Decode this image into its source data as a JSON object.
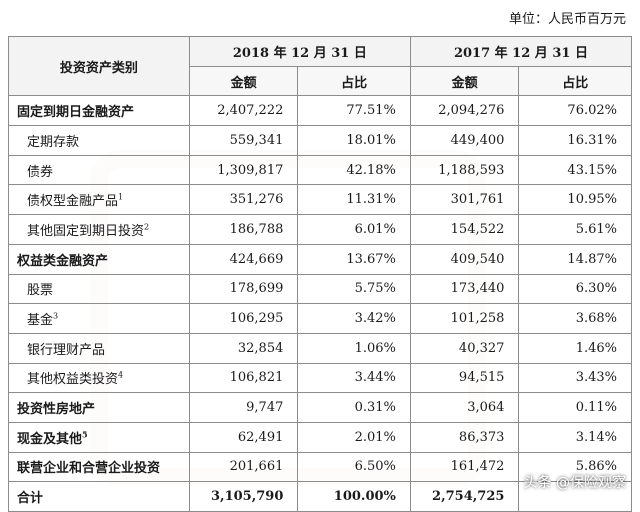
{
  "unit_label": "单位：人民币百万元",
  "header": {
    "category": "投资资产类别",
    "year2018": "2018 年 12 月 31 日",
    "year2017": "2017 年 12 月 31 日",
    "amount": "金额",
    "share": "占比"
  },
  "rows": [
    {
      "label": "固定到期日金融资产",
      "sup": "",
      "a18": "2,407,222",
      "p18": "77.51%",
      "a17": "2,094,276",
      "p17": "76.02%",
      "kind": "cat"
    },
    {
      "label": "定期存款",
      "sup": "",
      "a18": "559,341",
      "p18": "18.01%",
      "a17": "449,400",
      "p17": "16.31%",
      "kind": "sub"
    },
    {
      "label": "债券",
      "sup": "",
      "a18": "1,309,817",
      "p18": "42.18%",
      "a17": "1,188,593",
      "p17": "43.15%",
      "kind": "sub"
    },
    {
      "label": "债权型金融产品",
      "sup": "1",
      "a18": "351,276",
      "p18": "11.31%",
      "a17": "301,761",
      "p17": "10.95%",
      "kind": "sub"
    },
    {
      "label": "其他固定到期日投资",
      "sup": "2",
      "a18": "186,788",
      "p18": "6.01%",
      "a17": "154,522",
      "p17": "5.61%",
      "kind": "sub"
    },
    {
      "label": "权益类金融资产",
      "sup": "",
      "a18": "424,669",
      "p18": "13.67%",
      "a17": "409,540",
      "p17": "14.87%",
      "kind": "cat"
    },
    {
      "label": "股票",
      "sup": "",
      "a18": "178,699",
      "p18": "5.75%",
      "a17": "173,440",
      "p17": "6.30%",
      "kind": "sub"
    },
    {
      "label": "基金",
      "sup": "3",
      "a18": "106,295",
      "p18": "3.42%",
      "a17": "101,258",
      "p17": "3.68%",
      "kind": "sub"
    },
    {
      "label": "银行理财产品",
      "sup": "",
      "a18": "32,854",
      "p18": "1.06%",
      "a17": "40,327",
      "p17": "1.46%",
      "kind": "sub"
    },
    {
      "label": "其他权益类投资",
      "sup": "4",
      "a18": "106,821",
      "p18": "3.44%",
      "a17": "94,515",
      "p17": "3.43%",
      "kind": "sub"
    },
    {
      "label": "投资性房地产",
      "sup": "",
      "a18": "9,747",
      "p18": "0.31%",
      "a17": "3,064",
      "p17": "0.11%",
      "kind": "cat"
    },
    {
      "label": "现金及其他",
      "sup": "5",
      "a18": "62,491",
      "p18": "2.01%",
      "a17": "86,373",
      "p17": "3.14%",
      "kind": "cat"
    },
    {
      "label": "联营企业和合营企业投资",
      "sup": "",
      "a18": "201,661",
      "p18": "6.50%",
      "a17": "161,472",
      "p17": "5.86%",
      "kind": "cat"
    },
    {
      "label": "合计",
      "sup": "",
      "a18": "3,105,790",
      "p18": "100.00%",
      "a17": "2,754,725",
      "p17": "",
      "kind": "total"
    }
  ],
  "brand": "头条 @保险观察"
}
